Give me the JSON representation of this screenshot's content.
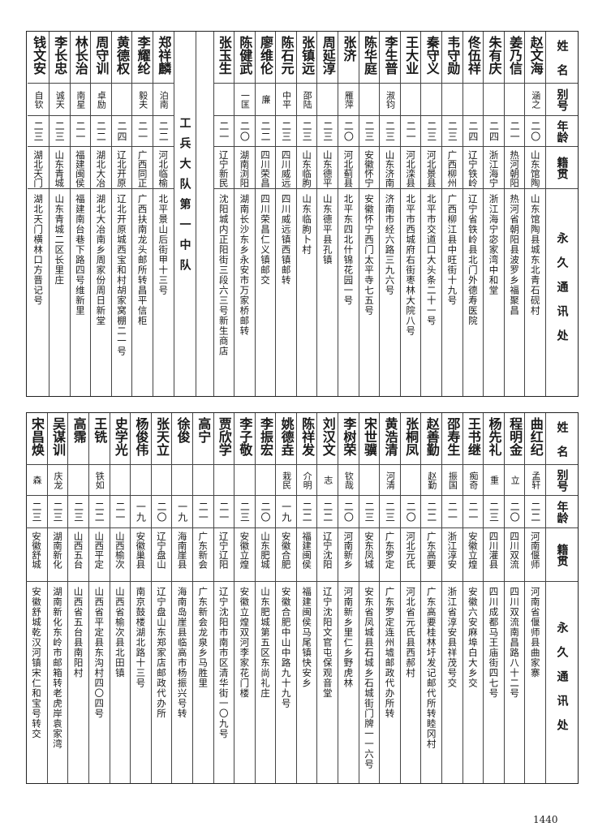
{
  "headers": {
    "name": "姓名",
    "alias": "别号",
    "age": "年龄",
    "origin": "籍贯",
    "address": "永久通讯处"
  },
  "top": {
    "section_title": "工兵大队第一中队",
    "right_group": [
      {
        "name": "赵文海",
        "alias": "涵之",
        "age": "二〇",
        "origin": "山东馆陶",
        "address": "山东馆陶县城东北青石砚村"
      },
      {
        "name": "姜乃信",
        "alias": "",
        "age": "二一",
        "origin": "热河朝阳",
        "address": "热河省朝阳县波罗乡福聚昌"
      },
      {
        "name": "朱有庆",
        "alias": "",
        "age": "二四",
        "origin": "浙江海宁",
        "address": "浙江海宁宓家湾中和堂"
      },
      {
        "name": "佟伍祥",
        "alias": "",
        "age": "二四",
        "origin": "辽宁铁岭",
        "address": "辽宁省铁岭县北门外德寿医院"
      },
      {
        "name": "韦守勋",
        "alias": "",
        "age": "二三",
        "origin": "广西柳州",
        "address": "广西柳江县中旺街十九号"
      },
      {
        "name": "秦守义",
        "alias": "",
        "age": "二三",
        "origin": "河北景县",
        "address": "北平市交道口大头条二十一号"
      },
      {
        "name": "王大业",
        "alias": "",
        "age": "二一",
        "origin": "河北滦县",
        "address": "北平市西城府右街枣林大院八号"
      },
      {
        "name": "李生普",
        "alias": "淑钧",
        "age": "二三",
        "origin": "山东济南",
        "address": "济南市经六路三九六号"
      },
      {
        "name": "陈华庭",
        "alias": "",
        "age": "二三",
        "origin": "安徽怀宁",
        "address": "安徽怀宁西门太平寺七五号"
      },
      {
        "name": "张济",
        "alias": "雁萍",
        "age": "二〇",
        "origin": "河北蓟县",
        "address": "北平东四北什锦花园一号"
      },
      {
        "name": "周延淳",
        "alias": "",
        "age": "二三",
        "origin": "山东德平",
        "address": "山东德平县孔镇"
      },
      {
        "name": "张镇远",
        "alias": "邵陆",
        "age": "二三",
        "origin": "山东临朐",
        "address": "山东临朐卜村"
      },
      {
        "name": "陈石元",
        "alias": "中平",
        "age": "二三",
        "origin": "四川威远",
        "address": "四川威远镇西镇邮转"
      },
      {
        "name": "廖维伦",
        "alias": "廉",
        "age": "二二",
        "origin": "四川荣昌",
        "address": "四川荣昌仁义镇邮交"
      },
      {
        "name": "陈健武",
        "alias": "一匡",
        "age": "二〇",
        "origin": "湖南浏阳",
        "address": "湖南长沙东乡永安市万家桥邮转"
      },
      {
        "name": "张玉生",
        "alias": "",
        "age": "二一",
        "origin": "辽宁新民",
        "address": "沈阳城内正阳街三段六三号新生商店"
      }
    ],
    "left_group": [
      {
        "name": "郑祥麟",
        "alias": "泊南",
        "age": "二二",
        "origin": "河北临榆",
        "address": "北平景山后街甲十三号"
      },
      {
        "name": "李耀纶",
        "alias": "毅夫",
        "age": "二一",
        "origin": "广西同正",
        "address": "广西扶南龙头邮所转昌平信柜"
      },
      {
        "name": "黄德权",
        "alias": "",
        "age": "二四",
        "origin": "辽北开原",
        "address": "辽北开原城西宝和村胡家窝棚二一号"
      },
      {
        "name": "周守训",
        "alias": "卓励",
        "age": "二二",
        "origin": "湖北大冶",
        "address": "湖北大冶南乡周家份周日新堂"
      },
      {
        "name": "林长治",
        "alias": "南星",
        "age": "二一",
        "origin": "福建闽侯",
        "address": "福建南台巷下路四号维新里"
      },
      {
        "name": "李长忠",
        "alias": "诚天",
        "age": "二三",
        "origin": "山东青城",
        "address": "山东青城二区长里庄"
      },
      {
        "name": "钱文安",
        "alias": "自钦",
        "age": "二三",
        "origin": "湖北天门",
        "address": "湖北天门横林口方晋记号"
      }
    ]
  },
  "bottom": [
    {
      "name": "曲红纪",
      "alias": "孟轩",
      "age": "二二",
      "origin": "河南偃师",
      "address": "河南省偃师县曲家寨"
    },
    {
      "name": "程明金",
      "alias": "立",
      "age": "二〇",
      "origin": "四川双流",
      "address": "四川双流南昌路八十二号"
    },
    {
      "name": "杨先礼",
      "alias": "重",
      "age": "二三",
      "origin": "四川灌县",
      "address": "四川成都马王庙街四七号"
    },
    {
      "name": "王书继",
      "alias": "痴奇",
      "age": "二一",
      "origin": "安徽立煌",
      "address": "安徽六安麻埠白大乡交"
    },
    {
      "name": "邵寿生",
      "alias": "振国",
      "age": "二一",
      "origin": "浙江淳安",
      "address": "浙江省淳安县祥茂号交"
    },
    {
      "name": "赵善勤",
      "alias": "赵勤",
      "age": "二二",
      "origin": "广东高要",
      "address": "广东高要桂林圩发记邮代所转睦冈村"
    },
    {
      "name": "张桐凤",
      "alias": "",
      "age": "二〇",
      "origin": "河北元氏",
      "address": "河北省元氏县西郝村"
    },
    {
      "name": "黄浩清",
      "alias": "河清",
      "age": "二三",
      "origin": "广东罗定",
      "address": "广东罗定连州墟邮政代办所转"
    },
    {
      "name": "宋世骥",
      "alias": "",
      "age": "二三",
      "origin": "安东凤城",
      "address": "安东省凤城县石城乡石城街门牌一一六号"
    },
    {
      "name": "李树荣",
      "alias": "钦哉",
      "age": "二〇",
      "origin": "河南新乡",
      "address": "河南新乡里仁乡野虎林"
    },
    {
      "name": "刘汉文",
      "alias": "志",
      "age": "二二",
      "origin": "辽宁沈阳",
      "address": "辽宁沈阳文官屯保观音堂"
    },
    {
      "name": "陈祥发",
      "alias": "介明",
      "age": "二二",
      "origin": "福建闽侯",
      "address": "福建闽侯马尾镇快安乡"
    },
    {
      "name": "姚德垚",
      "alias": "栽民",
      "age": "一九",
      "origin": "安徽合肥",
      "address": "安徽合肥中山中路九十九号"
    },
    {
      "name": "李振宏",
      "alias": "",
      "age": "二〇",
      "origin": "山东肥城",
      "address": "山东肥城第五区东尚礼庄"
    },
    {
      "name": "李子敬",
      "alias": "",
      "age": "二三",
      "origin": "安徽立煌",
      "address": "安徽立煌双河李家花门楼"
    },
    {
      "name": "贾欣学",
      "alias": "",
      "age": "二一",
      "origin": "辽宁辽阳",
      "address": "辽宁沈阳市南市区清华街一〇九号"
    },
    {
      "name": "高宁",
      "alias": "",
      "age": "二一",
      "origin": "广东新会",
      "address": "广东新会龙泉乡马胜里"
    },
    {
      "name": "徐俊",
      "alias": "",
      "age": "一九",
      "origin": "海南崖县",
      "address": "海南岛崖县临高市杨振兴号转"
    },
    {
      "name": "张天立",
      "alias": "",
      "age": "二〇",
      "origin": "辽宁盘山",
      "address": "辽宁盘山东郑家店邮政代办所"
    },
    {
      "name": "杨俊伟",
      "alias": "",
      "age": "一九",
      "origin": "安徽巢县",
      "address": "南京鼓楼湖北路十三号"
    },
    {
      "name": "史学光",
      "alias": "",
      "age": "二一",
      "origin": "山西榆次",
      "address": "山西省榆次县北田镇"
    },
    {
      "name": "王铣",
      "alias": "铁如",
      "age": "二二",
      "origin": "山西平定",
      "address": "山西省平定县东沟村四〇四号"
    },
    {
      "name": "高霈",
      "alias": "",
      "age": "二三",
      "origin": "山西五台",
      "address": "山西省五台县南阳村"
    },
    {
      "name": "吴谋训",
      "alias": "庆龙",
      "age": "二三",
      "origin": "湖南新化",
      "address": "湖南新化东岭市邮箱转老虎岸袁家湾"
    },
    {
      "name": "宋昌焕",
      "alias": "森",
      "age": "二三",
      "origin": "安徽舒城",
      "address": "安徽舒城乾汉河镇宋仁和宝号转交"
    }
  ],
  "page_number": "1440"
}
